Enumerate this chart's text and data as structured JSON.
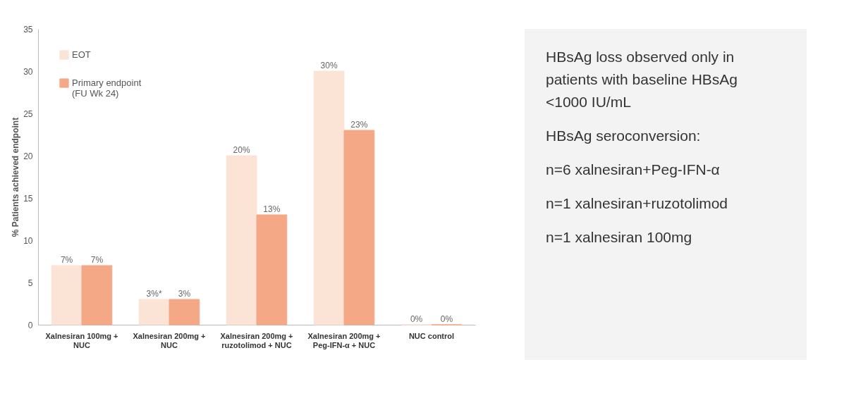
{
  "chart_data": [
    {
      "type": "bar",
      "ylabel": "% Patients achieved endpoint",
      "categories": [
        "Xalnesiran 100mg + NUC",
        "Xalnesiran 200mg + NUC",
        "Xalnesiran 200mg + ruzotolimod + NUC",
        "Xalnesiran 200mg + Peg-IFN-α + NUC",
        "NUC control"
      ],
      "series": [
        {
          "name": "EOT",
          "color": "#fbe3d6",
          "values": [
            7,
            3,
            20,
            30,
            0
          ],
          "value_labels": [
            "7%",
            "3%*",
            "20%",
            "30%",
            "0%"
          ]
        },
        {
          "name": "Primary endpoint (FU Wk 24)",
          "color": "#f5a886",
          "values": [
            7,
            3,
            13,
            23,
            0
          ],
          "value_labels": [
            "7%",
            "3%",
            "13%",
            "23%",
            "0%"
          ]
        }
      ],
      "ylim": [
        0,
        35
      ],
      "yticks": [
        0,
        5,
        10,
        15,
        20,
        25,
        30,
        35
      ],
      "grid": false,
      "legend": "top left"
    },
    {
      "type": "other",
      "annotations": [
        "HBsAg loss observed only in patients with baseline HBsAg <1000 IU/mL",
        "HBsAg seroconversion:",
        "n=6 xalnesiran+Peg-IFN-α",
        "n=1 xalnesiran+ruzotolimod",
        "n=1 xalnesiran 100mg"
      ]
    }
  ]
}
